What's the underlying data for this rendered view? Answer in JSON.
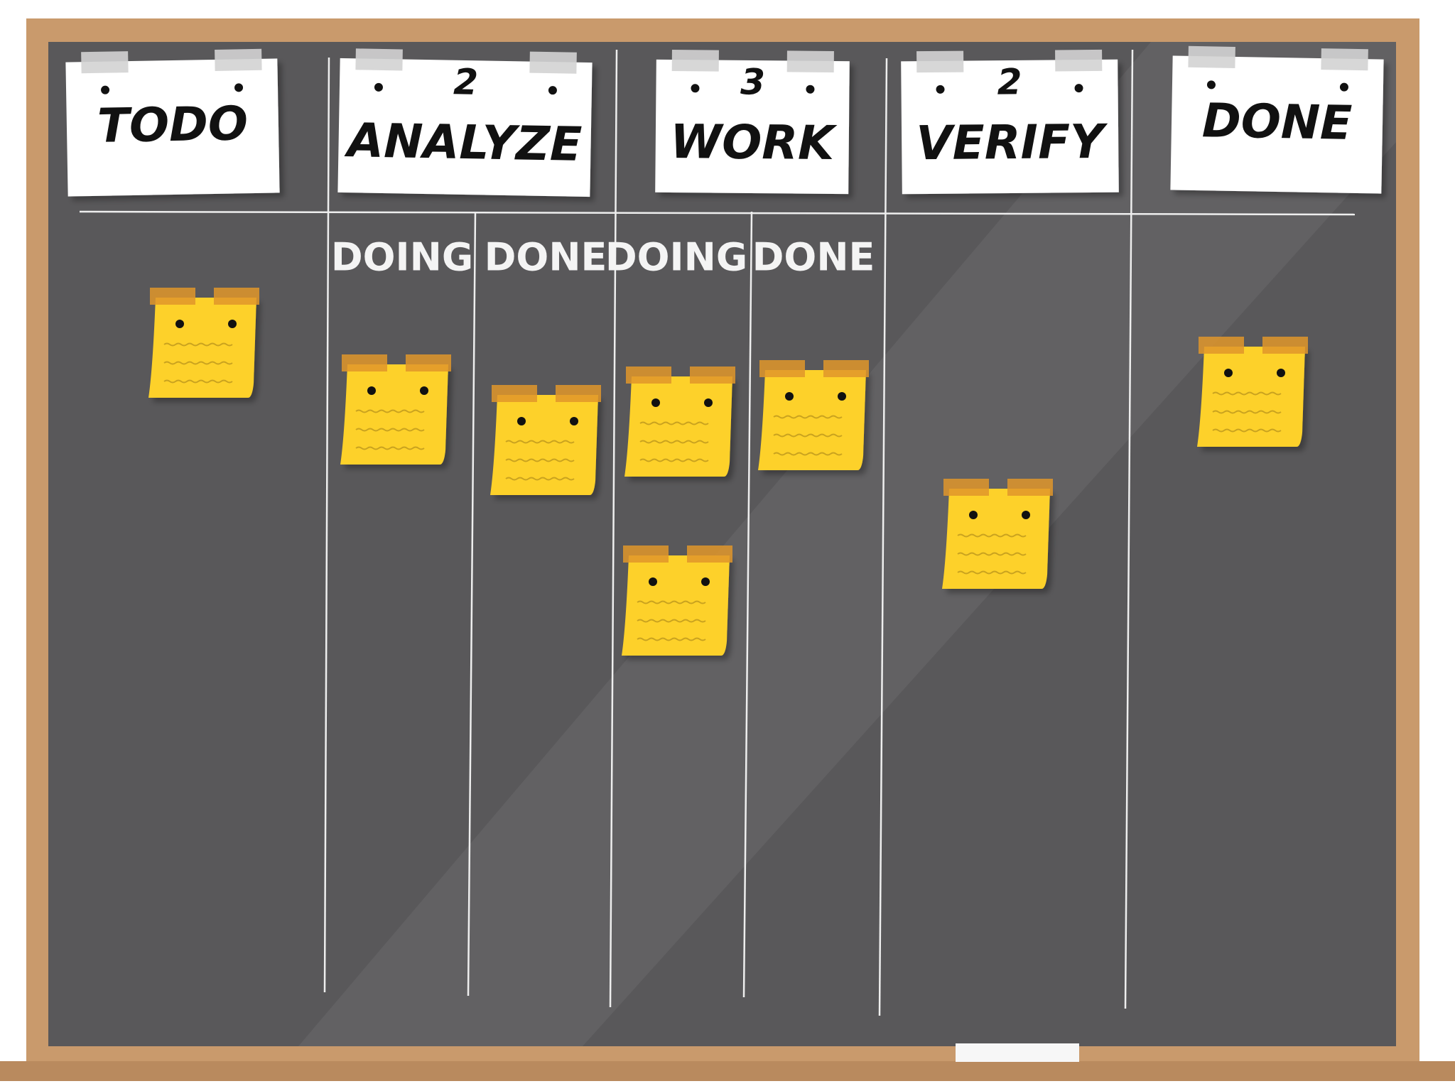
{
  "columns": [
    {
      "title": "TODO"
    },
    {
      "title": "ANALYZE",
      "wip": 2,
      "subcolumns": [
        "DOING",
        "DONE"
      ]
    },
    {
      "title": "WORK",
      "wip": 3,
      "subcolumns": [
        "DOING",
        "DONE"
      ]
    },
    {
      "title": "VERIFY",
      "wip": 2
    },
    {
      "title": "DONE"
    }
  ]
}
